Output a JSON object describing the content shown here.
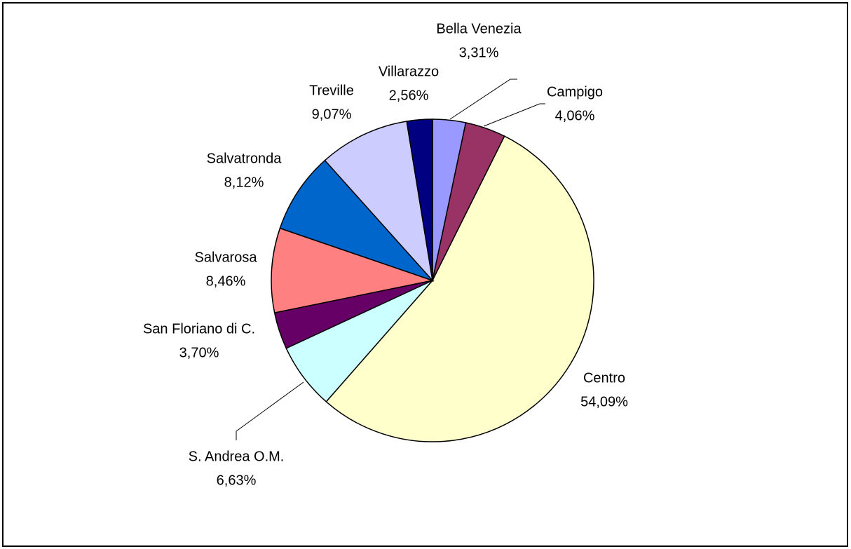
{
  "chart_data": {
    "type": "pie",
    "categories": [
      "Bella Venezia",
      "Campigo",
      "Centro",
      "S. Andrea O.M.",
      "San Floriano di C.",
      "Salvarosa",
      "Salvatronda",
      "Treville",
      "Villarazzo"
    ],
    "values": [
      3.31,
      4.06,
      54.09,
      6.63,
      3.7,
      8.46,
      8.12,
      9.07,
      2.56
    ],
    "value_labels": [
      "3,31%",
      "4,06%",
      "54,09%",
      "6,63%",
      "3,70%",
      "8,46%",
      "8,12%",
      "9,07%",
      "2,56%"
    ],
    "colors": [
      "#9999ff",
      "#993366",
      "#ffffcc",
      "#ccffff",
      "#660066",
      "#ff8080",
      "#0066cc",
      "#ccccff",
      "#000080"
    ]
  }
}
